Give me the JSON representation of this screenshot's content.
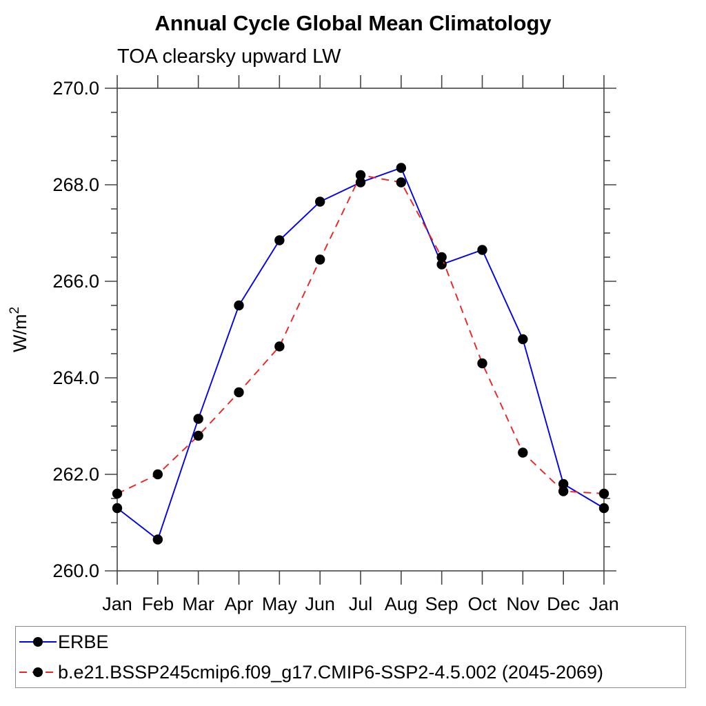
{
  "title": "Annual Cycle Global Mean Climatology",
  "subtitle": "TOA clearsky upward LW",
  "ylabel": {
    "base": "W/m",
    "exponent": "2"
  },
  "chart_data": {
    "type": "line",
    "title": "Annual Cycle Global Mean Climatology",
    "subtitle": "TOA clearsky upward LW",
    "xlabel": "",
    "ylabel": "W/m^2",
    "x_categories": [
      "Jan",
      "Feb",
      "Mar",
      "Apr",
      "May",
      "Jun",
      "Jul",
      "Aug",
      "Sep",
      "Oct",
      "Nov",
      "Dec",
      "Jan"
    ],
    "ylim": [
      260.0,
      270.0
    ],
    "y_major_tick_step": 2.0,
    "y_minor_tick_step": 0.5,
    "y_tick_labels": [
      "260.0",
      "262.0",
      "264.0",
      "266.0",
      "268.0",
      "270.0"
    ],
    "grid": false,
    "frame": "box-with-outward-ticks",
    "legend_position": "bottom-left-box",
    "marker_color": "#000000",
    "axis_color": "#444444",
    "series": [
      {
        "name": "ERBE",
        "color": "#0000ee",
        "line_style": "solid",
        "marker": "circle",
        "values": [
          261.3,
          260.65,
          263.15,
          265.5,
          266.85,
          267.65,
          268.05,
          268.35,
          266.35,
          266.65,
          264.8,
          261.8,
          261.3
        ]
      },
      {
        "name": "b.e21.BSSP245cmip6.f09_g17.CMIP6-SSP2-4.5.002 (2045-2069)",
        "color": "#ee2222",
        "line_style": "dashed",
        "marker": "circle",
        "values": [
          261.6,
          262.0,
          262.8,
          263.7,
          264.65,
          266.45,
          268.2,
          268.05,
          266.5,
          264.3,
          262.45,
          261.65,
          261.6
        ]
      }
    ]
  }
}
